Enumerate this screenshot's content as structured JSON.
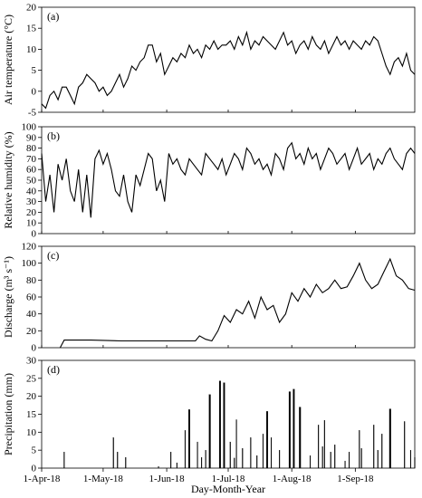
{
  "x_axis": {
    "label": "Day-Month-Year",
    "start": "2018-04-01",
    "end": "2018-09-30",
    "tick_labels": [
      "1-Apr-18",
      "1-May-18",
      "1-Jun-18",
      "1-Jul-18",
      "1-Aug-18",
      "1-Sep-18"
    ],
    "tick_dates": [
      "2018-04-01",
      "2018-05-01",
      "2018-06-01",
      "2018-07-01",
      "2018-08-01",
      "2018-09-01"
    ]
  },
  "chart_data": [
    {
      "type": "line",
      "panel_label": "(a)",
      "ylabel": "Air temperature (°C)",
      "ylim": [
        -5,
        20
      ],
      "yticks": [
        -5,
        0,
        5,
        10,
        15,
        20
      ],
      "grid": false,
      "series": [
        {
          "x": [
            "2018-04-01",
            "2018-04-03",
            "2018-04-05",
            "2018-04-07",
            "2018-04-09",
            "2018-04-11",
            "2018-04-13",
            "2018-04-15",
            "2018-04-17",
            "2018-04-19",
            "2018-04-21",
            "2018-04-23",
            "2018-04-25",
            "2018-04-27",
            "2018-04-29",
            "2018-05-01",
            "2018-05-03",
            "2018-05-05",
            "2018-05-07",
            "2018-05-09",
            "2018-05-11",
            "2018-05-13",
            "2018-05-15",
            "2018-05-17",
            "2018-05-19",
            "2018-05-21",
            "2018-05-23",
            "2018-05-25",
            "2018-05-27",
            "2018-05-29",
            "2018-05-31",
            "2018-06-02",
            "2018-06-04",
            "2018-06-06",
            "2018-06-08",
            "2018-06-10",
            "2018-06-12",
            "2018-06-14",
            "2018-06-16",
            "2018-06-18",
            "2018-06-20",
            "2018-06-22",
            "2018-06-24",
            "2018-06-26",
            "2018-06-28",
            "2018-06-30",
            "2018-07-02",
            "2018-07-04",
            "2018-07-06",
            "2018-07-08",
            "2018-07-10",
            "2018-07-12",
            "2018-07-14",
            "2018-07-16",
            "2018-07-18",
            "2018-07-20",
            "2018-07-22",
            "2018-07-24",
            "2018-07-26",
            "2018-07-28",
            "2018-07-30",
            "2018-08-01",
            "2018-08-03",
            "2018-08-05",
            "2018-08-07",
            "2018-08-09",
            "2018-08-11",
            "2018-08-13",
            "2018-08-15",
            "2018-08-17",
            "2018-08-19",
            "2018-08-21",
            "2018-08-23",
            "2018-08-25",
            "2018-08-27",
            "2018-08-29",
            "2018-08-31",
            "2018-09-02",
            "2018-09-04",
            "2018-09-06",
            "2018-09-08",
            "2018-09-10",
            "2018-09-12",
            "2018-09-14",
            "2018-09-16",
            "2018-09-18",
            "2018-09-20",
            "2018-09-22",
            "2018-09-24",
            "2018-09-26",
            "2018-09-28",
            "2018-09-30"
          ],
          "y": [
            -3,
            -4,
            -1,
            0,
            -2,
            1,
            1,
            -1,
            -3,
            1,
            2,
            4,
            3,
            2,
            0,
            1,
            -1,
            0,
            2,
            4,
            1,
            3,
            6,
            5,
            7,
            8,
            11,
            11,
            7,
            9,
            4,
            6,
            8,
            7,
            9,
            8,
            11,
            9,
            10,
            8,
            11,
            10,
            12,
            10,
            11,
            11,
            12,
            10,
            13,
            11,
            14,
            10,
            12,
            11,
            13,
            12,
            11,
            10,
            12,
            14,
            11,
            12,
            9,
            11,
            12,
            10,
            13,
            11,
            10,
            12,
            9,
            11,
            13,
            11,
            12,
            10,
            12,
            11,
            10,
            12,
            11,
            13,
            12,
            9,
            6,
            4,
            7,
            8,
            6,
            9,
            5,
            4
          ]
        }
      ]
    },
    {
      "type": "line",
      "panel_label": "(b)",
      "ylabel": "Relative humidity (%)",
      "ylim": [
        0,
        100
      ],
      "yticks": [
        0,
        10,
        20,
        30,
        40,
        50,
        60,
        70,
        80,
        90,
        100
      ],
      "grid": false,
      "series": [
        {
          "x": [
            "2018-04-01",
            "2018-04-03",
            "2018-04-05",
            "2018-04-07",
            "2018-04-09",
            "2018-04-11",
            "2018-04-13",
            "2018-04-15",
            "2018-04-17",
            "2018-04-19",
            "2018-04-21",
            "2018-04-23",
            "2018-04-25",
            "2018-04-27",
            "2018-04-29",
            "2018-05-01",
            "2018-05-03",
            "2018-05-05",
            "2018-05-07",
            "2018-05-09",
            "2018-05-11",
            "2018-05-13",
            "2018-05-15",
            "2018-05-17",
            "2018-05-19",
            "2018-05-21",
            "2018-05-23",
            "2018-05-25",
            "2018-05-27",
            "2018-05-29",
            "2018-05-31",
            "2018-06-02",
            "2018-06-04",
            "2018-06-06",
            "2018-06-08",
            "2018-06-10",
            "2018-06-12",
            "2018-06-14",
            "2018-06-16",
            "2018-06-18",
            "2018-06-20",
            "2018-06-22",
            "2018-06-24",
            "2018-06-26",
            "2018-06-28",
            "2018-06-30",
            "2018-07-02",
            "2018-07-04",
            "2018-07-06",
            "2018-07-08",
            "2018-07-10",
            "2018-07-12",
            "2018-07-14",
            "2018-07-16",
            "2018-07-18",
            "2018-07-20",
            "2018-07-22",
            "2018-07-24",
            "2018-07-26",
            "2018-07-28",
            "2018-07-30",
            "2018-08-01",
            "2018-08-03",
            "2018-08-05",
            "2018-08-07",
            "2018-08-09",
            "2018-08-11",
            "2018-08-13",
            "2018-08-15",
            "2018-08-17",
            "2018-08-19",
            "2018-08-21",
            "2018-08-23",
            "2018-08-25",
            "2018-08-27",
            "2018-08-29",
            "2018-08-31",
            "2018-09-02",
            "2018-09-04",
            "2018-09-06",
            "2018-09-08",
            "2018-09-10",
            "2018-09-12",
            "2018-09-14",
            "2018-09-16",
            "2018-09-18",
            "2018-09-20",
            "2018-09-22",
            "2018-09-24",
            "2018-09-26",
            "2018-09-28",
            "2018-09-30"
          ],
          "y": [
            75,
            30,
            55,
            20,
            65,
            50,
            70,
            40,
            30,
            60,
            20,
            55,
            15,
            70,
            78,
            65,
            75,
            60,
            40,
            35,
            55,
            30,
            20,
            55,
            45,
            60,
            75,
            70,
            40,
            50,
            30,
            75,
            65,
            70,
            60,
            55,
            70,
            65,
            60,
            55,
            75,
            70,
            65,
            60,
            70,
            55,
            65,
            75,
            70,
            60,
            80,
            75,
            65,
            70,
            60,
            65,
            55,
            75,
            70,
            60,
            80,
            85,
            70,
            75,
            65,
            80,
            70,
            75,
            60,
            70,
            80,
            75,
            65,
            70,
            75,
            60,
            70,
            80,
            65,
            70,
            75,
            60,
            70,
            65,
            75,
            80,
            70,
            65,
            60,
            75,
            80,
            75
          ]
        }
      ]
    },
    {
      "type": "line",
      "panel_label": "(c)",
      "ylabel": "Discharge (m³ s⁻¹)",
      "ylim": [
        0,
        120
      ],
      "yticks": [
        0,
        20,
        40,
        60,
        80,
        100,
        120
      ],
      "grid": false,
      "series": [
        {
          "x": [
            "2018-04-10",
            "2018-04-12",
            "2018-04-25",
            "2018-05-10",
            "2018-05-25",
            "2018-06-10",
            "2018-06-15",
            "2018-06-17",
            "2018-06-20",
            "2018-06-23",
            "2018-06-26",
            "2018-06-29",
            "2018-07-02",
            "2018-07-05",
            "2018-07-08",
            "2018-07-11",
            "2018-07-14",
            "2018-07-17",
            "2018-07-20",
            "2018-07-23",
            "2018-07-26",
            "2018-07-29",
            "2018-08-01",
            "2018-08-04",
            "2018-08-07",
            "2018-08-10",
            "2018-08-13",
            "2018-08-16",
            "2018-08-19",
            "2018-08-22",
            "2018-08-25",
            "2018-08-28",
            "2018-08-31",
            "2018-09-03",
            "2018-09-06",
            "2018-09-09",
            "2018-09-12",
            "2018-09-15",
            "2018-09-18",
            "2018-09-21",
            "2018-09-24",
            "2018-09-27",
            "2018-09-30"
          ],
          "y": [
            0,
            9,
            9,
            8,
            8,
            8,
            8,
            14,
            10,
            8,
            20,
            38,
            30,
            45,
            40,
            55,
            35,
            60,
            45,
            50,
            30,
            40,
            65,
            55,
            70,
            60,
            75,
            65,
            70,
            80,
            70,
            72,
            85,
            100,
            80,
            70,
            75,
            90,
            105,
            85,
            80,
            70,
            68
          ]
        }
      ]
    },
    {
      "type": "bar",
      "panel_label": "(d)",
      "ylabel": "Precipitation (mm)",
      "ylim": [
        0,
        30
      ],
      "yticks": [
        0,
        5,
        10,
        15,
        20,
        25,
        30
      ],
      "grid": false,
      "series": [
        {
          "x": [
            "2018-04-12",
            "2018-05-06",
            "2018-05-08",
            "2018-05-12",
            "2018-05-28",
            "2018-06-03",
            "2018-06-06",
            "2018-06-10",
            "2018-06-12",
            "2018-06-16",
            "2018-06-18",
            "2018-06-20",
            "2018-06-22",
            "2018-06-27",
            "2018-06-29",
            "2018-07-02",
            "2018-07-04",
            "2018-07-05",
            "2018-07-08",
            "2018-07-12",
            "2018-07-15",
            "2018-07-18",
            "2018-07-20",
            "2018-07-22",
            "2018-07-26",
            "2018-07-31",
            "2018-08-02",
            "2018-08-05",
            "2018-08-10",
            "2018-08-14",
            "2018-08-16",
            "2018-08-17",
            "2018-08-20",
            "2018-08-22",
            "2018-08-27",
            "2018-08-29",
            "2018-09-03",
            "2018-09-04",
            "2018-09-10",
            "2018-09-12",
            "2018-09-14",
            "2018-09-18",
            "2018-09-25",
            "2018-09-28",
            "2018-09-30"
          ],
          "y": [
            4.5,
            8.5,
            4.5,
            3.0,
            0.5,
            4.5,
            1.5,
            10.5,
            16.3,
            7.3,
            3.0,
            5.0,
            20.5,
            24.3,
            23.8,
            7.3,
            2.8,
            13.5,
            5.5,
            8.5,
            3.5,
            9.5,
            15.8,
            8.5,
            5.0,
            21.3,
            22.0,
            17.0,
            3.5,
            12.0,
            6.0,
            13.3,
            4.5,
            6.5,
            2.0,
            4.5,
            10.5,
            5.5,
            12.0,
            5.0,
            9.5,
            16.5,
            13.0,
            5.0,
            3.0
          ]
        }
      ]
    }
  ]
}
